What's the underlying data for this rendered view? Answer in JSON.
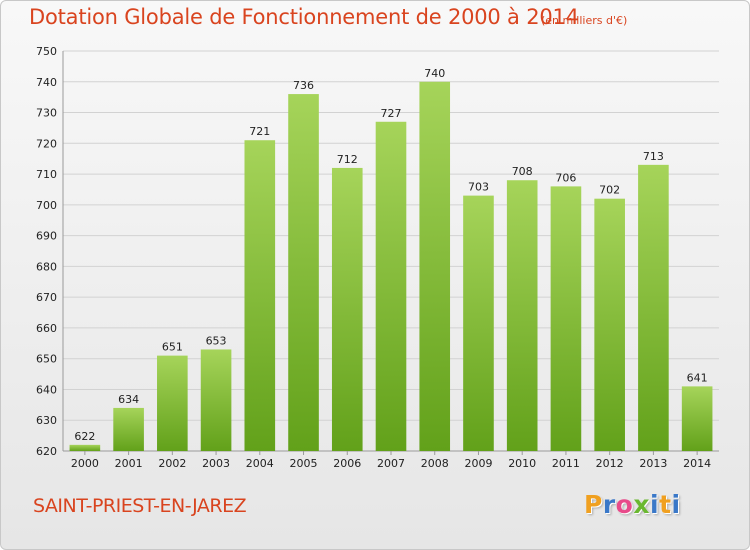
{
  "header": {
    "title": "Dotation Globale de Fonctionnement de 2000 à 2014",
    "unit": "(en milliers d'€)"
  },
  "footer": {
    "city": "SAINT-PRIEST-EN-JAREZ",
    "logo": {
      "letters": [
        "P",
        "r",
        "o",
        "x",
        "i",
        "t",
        "i"
      ],
      "colors": [
        "#f0a020",
        "#3a78c8",
        "#e84a8a",
        "#6ab830",
        "#3a78c8",
        "#f0a020",
        "#3a78c8"
      ]
    }
  },
  "colors": {
    "title": "#d9441f",
    "bar_light": "#a6d45a",
    "bar_dark": "#62a11a",
    "grid": "#d2d2d2"
  },
  "chart_data": {
    "type": "bar",
    "title": "Dotation Globale de Fonctionnement de 2000 à 2014",
    "xlabel": "",
    "ylabel": "",
    "categories": [
      "2000",
      "2001",
      "2002",
      "2003",
      "2004",
      "2005",
      "2006",
      "2007",
      "2008",
      "2009",
      "2010",
      "2011",
      "2012",
      "2013",
      "2014"
    ],
    "values": [
      622,
      634,
      651,
      653,
      721,
      736,
      712,
      727,
      740,
      703,
      708,
      706,
      702,
      713,
      641
    ],
    "ylim": [
      620,
      750
    ],
    "yticks": [
      620,
      630,
      640,
      650,
      660,
      670,
      680,
      690,
      700,
      710,
      720,
      730,
      740,
      750
    ],
    "grid": true,
    "legend": "none"
  }
}
